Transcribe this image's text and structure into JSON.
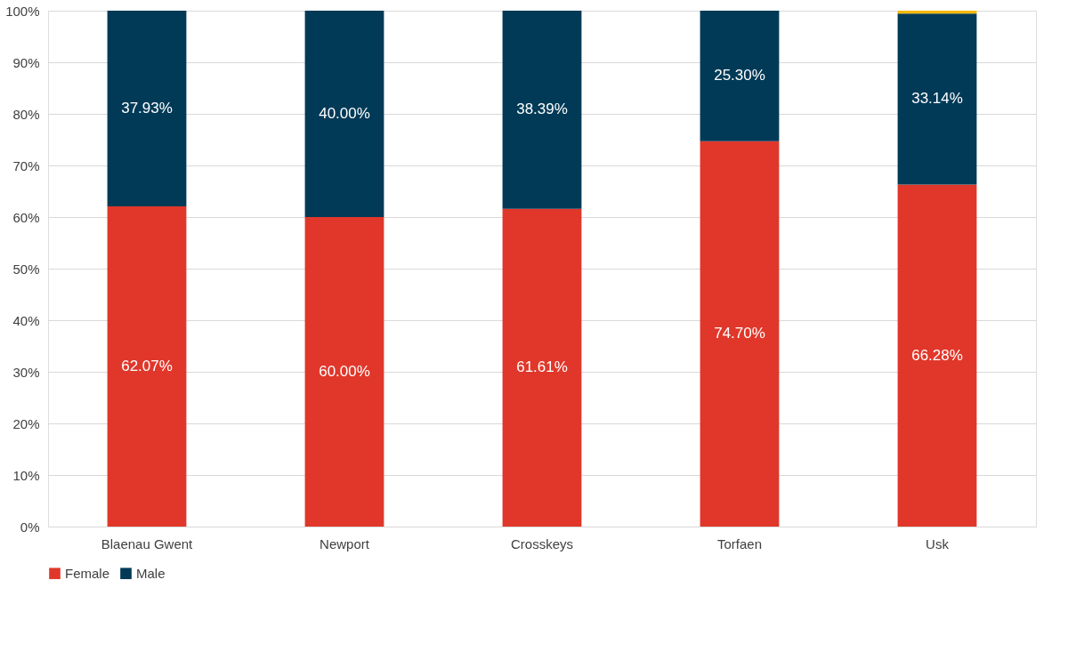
{
  "chart_data": {
    "type": "bar",
    "stacked": true,
    "categories": [
      "Blaenau Gwent",
      "Newport",
      "Crosskeys",
      "Torfaen",
      "Usk"
    ],
    "series": [
      {
        "name": "Female",
        "color": "#e0372a",
        "values": [
          62.07,
          60.0,
          61.61,
          74.7,
          66.28
        ],
        "value_labels": [
          "62.07%",
          "60.00%",
          "61.61%",
          "74.70%",
          "66.28%"
        ]
      },
      {
        "name": "Male",
        "color": "#003a57",
        "values": [
          37.93,
          40.0,
          38.39,
          25.3,
          33.14
        ],
        "value_labels": [
          "37.93%",
          "40.00%",
          "38.39%",
          "25.30%",
          "33.14%"
        ]
      },
      {
        "color": "#f5b800",
        "values": [
          null,
          null,
          null,
          null,
          0.58
        ]
      }
    ],
    "ylim": [
      0,
      100
    ],
    "yticks": [
      {
        "value": 0,
        "label": "0%"
      },
      {
        "value": 10,
        "label": "10%"
      },
      {
        "value": 20,
        "label": "20%"
      },
      {
        "value": 30,
        "label": "30%"
      },
      {
        "value": 40,
        "label": "40%"
      },
      {
        "value": 50,
        "label": "50%"
      },
      {
        "value": 60,
        "label": "60%"
      },
      {
        "value": 70,
        "label": "70%"
      },
      {
        "value": 80,
        "label": "80%"
      },
      {
        "value": 90,
        "label": "90%"
      },
      {
        "value": 100,
        "label": "100%"
      }
    ],
    "grid": "y",
    "legend": "bottom"
  }
}
